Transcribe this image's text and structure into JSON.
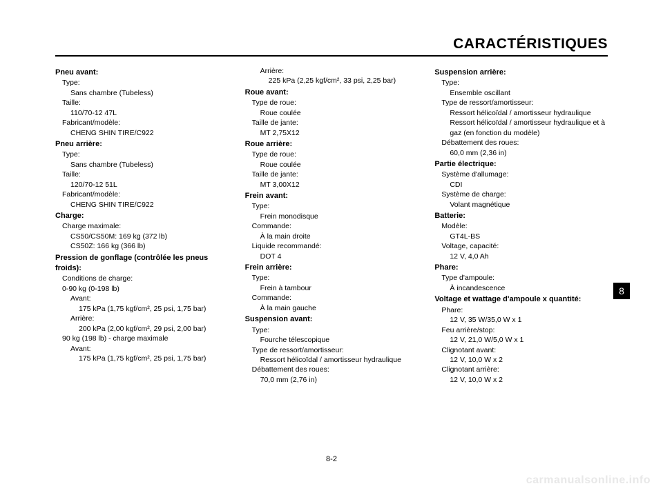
{
  "header": {
    "title": "CARACTÉRISTIQUES"
  },
  "side_tab": "8",
  "page_number": "8-2",
  "watermark": "carmanualsonline.info",
  "col1": {
    "s1_h": "Pneu avant:",
    "s1_l1": "Type:",
    "s1_v1": "Sans chambre (Tubeless)",
    "s1_l2": "Taille:",
    "s1_v2": "110/70-12 47L",
    "s1_l3": "Fabricant/modèle:",
    "s1_v3": "CHENG SHIN TIRE/C922",
    "s2_h": "Pneu arrière:",
    "s2_l1": "Type:",
    "s2_v1": "Sans chambre (Tubeless)",
    "s2_l2": "Taille:",
    "s2_v2": "120/70-12 51L",
    "s2_l3": "Fabricant/modèle:",
    "s2_v3": "CHENG SHIN TIRE/C922",
    "s3_h": "Charge:",
    "s3_l1": "Charge maximale:",
    "s3_v1": "CS50/CS50M: 169 kg (372 lb)",
    "s3_v2": "CS50Z: 166 kg (366 lb)",
    "s4_h": "Pression de gonflage (contrôlée les pneus froids):",
    "s4_l1": "Conditions de charge:",
    "s4_lbl2": "0-90 kg (0-198 lb)",
    "s4_av": "Avant:",
    "s4_av_v": "175 kPa (1,75 kgf/cm², 25 psi, 1,75 bar)",
    "s4_ar": "Arrière:",
    "s4_ar_v": "200 kPa (2,00 kgf/cm², 29 psi, 2,00 bar)",
    "s4_lbl3": "90 kg (198 lb) - charge maximale",
    "s4_av2": "Avant:",
    "s4_av2_v": "175 kPa (1,75 kgf/cm², 25 psi, 1,75 bar)"
  },
  "col2": {
    "top_ar": "Arrière:",
    "top_ar_v": "225 kPa (2,25 kgf/cm², 33 psi, 2,25 bar)",
    "s5_h": "Roue avant:",
    "s5_l1": "Type de roue:",
    "s5_v1": "Roue coulée",
    "s5_l2": "Taille de jante:",
    "s5_v2": "MT 2,75X12",
    "s6_h": "Roue arrière:",
    "s6_l1": "Type de roue:",
    "s6_v1": "Roue coulée",
    "s6_l2": "Taille de jante:",
    "s6_v2": "MT 3,00X12",
    "s7_h": "Frein avant:",
    "s7_l1": "Type:",
    "s7_v1": "Frein monodisque",
    "s7_l2": "Commande:",
    "s7_v2": "À la main droite",
    "s7_l3": "Liquide recommandé:",
    "s7_v3": "DOT 4",
    "s8_h": "Frein arrière:",
    "s8_l1": "Type:",
    "s8_v1": "Frein à tambour",
    "s8_l2": "Commande:",
    "s8_v2": "À la main gauche",
    "s9_h": "Suspension avant:",
    "s9_l1": "Type:",
    "s9_v1": "Fourche télescopique",
    "s9_l2": "Type de ressort/amortisseur:",
    "s9_v2": "Ressort hélicoïdal / amortisseur hydraulique",
    "s9_l3": "Débattement des roues:",
    "s9_v3": "70,0 mm (2,76 in)"
  },
  "col3": {
    "s10_h": "Suspension arrière:",
    "s10_l1": "Type:",
    "s10_v1": "Ensemble oscillant",
    "s10_l2": "Type de ressort/amortisseur:",
    "s10_v2a": "Ressort hélicoïdal / amortisseur hydraulique",
    "s10_v2b": "Ressort hélicoïdal / amortisseur hydraulique et à gaz (en fonction du modèle)",
    "s10_l3": "Débattement des roues:",
    "s10_v3": "60,0 mm (2,36 in)",
    "s11_h": "Partie électrique:",
    "s11_l1": "Système d'allumage:",
    "s11_v1": "CDI",
    "s11_l2": "Système de charge:",
    "s11_v2": "Volant magnétique",
    "s12_h": "Batterie:",
    "s12_l1": "Modèle:",
    "s12_v1": "GT4L-BS",
    "s12_l2": "Voltage, capacité:",
    "s12_v2": "12 V, 4,0 Ah",
    "s13_h": "Phare:",
    "s13_l1": "Type d'ampoule:",
    "s13_v1": "À incandescence",
    "s14_h": "Voltage et wattage d'ampoule x quantité:",
    "s14_l1": "Phare:",
    "s14_v1": "12 V, 35 W/35,0 W x 1",
    "s14_l2": "Feu arrière/stop:",
    "s14_v2": "12 V, 21,0 W/5,0 W x 1",
    "s14_l3": "Clignotant avant:",
    "s14_v3": "12 V, 10,0 W x 2",
    "s14_l4": "Clignotant arrière:",
    "s14_v4": "12 V, 10,0 W x 2"
  }
}
